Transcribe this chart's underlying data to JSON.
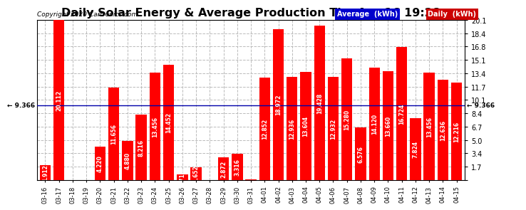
{
  "title": "Daily Solar Energy & Average Production Thu Apr 16 19:28",
  "copyright": "Copyright 2020 Cartronics.com",
  "categories": [
    "03-16",
    "03-17",
    "03-18",
    "03-19",
    "03-20",
    "03-21",
    "03-22",
    "03-23",
    "03-24",
    "03-25",
    "03-26",
    "03-27",
    "03-28",
    "03-29",
    "03-30",
    "03-31",
    "04-01",
    "04-02",
    "04-03",
    "04-04",
    "04-05",
    "04-06",
    "04-07",
    "04-08",
    "04-09",
    "04-10",
    "04-11",
    "04-12",
    "04-13",
    "04-14",
    "04-15"
  ],
  "values": [
    1.912,
    20.112,
    0.0,
    0.0,
    4.22,
    11.656,
    4.88,
    8.216,
    13.456,
    14.452,
    0.716,
    1.652,
    0.0,
    2.872,
    3.316,
    0.064,
    12.852,
    18.972,
    12.936,
    13.604,
    19.428,
    12.932,
    15.28,
    6.576,
    14.12,
    13.66,
    16.724,
    7.824,
    13.456,
    12.636,
    12.216
  ],
  "average": 9.366,
  "bar_color": "#ff0000",
  "average_line_color": "#0000aa",
  "ylim": [
    0.0,
    20.1
  ],
  "yticks": [
    0.0,
    1.7,
    3.4,
    5.0,
    6.7,
    8.4,
    10.1,
    11.7,
    13.4,
    15.1,
    16.8,
    18.4,
    20.1
  ],
  "background_color": "#ffffff",
  "grid_color": "#bbbbbb",
  "title_fontsize": 11.5,
  "bar_label_color": "#ffffff",
  "bar_label_fontsize": 5.5,
  "legend_avg_bg": "#0000cc",
  "legend_daily_bg": "#cc0000",
  "avg_label": "Average  (kWh)",
  "daily_label": "Daily  (kWh)",
  "avg_label_left": "← 9.366",
  "avg_label_right": "← 9.366"
}
